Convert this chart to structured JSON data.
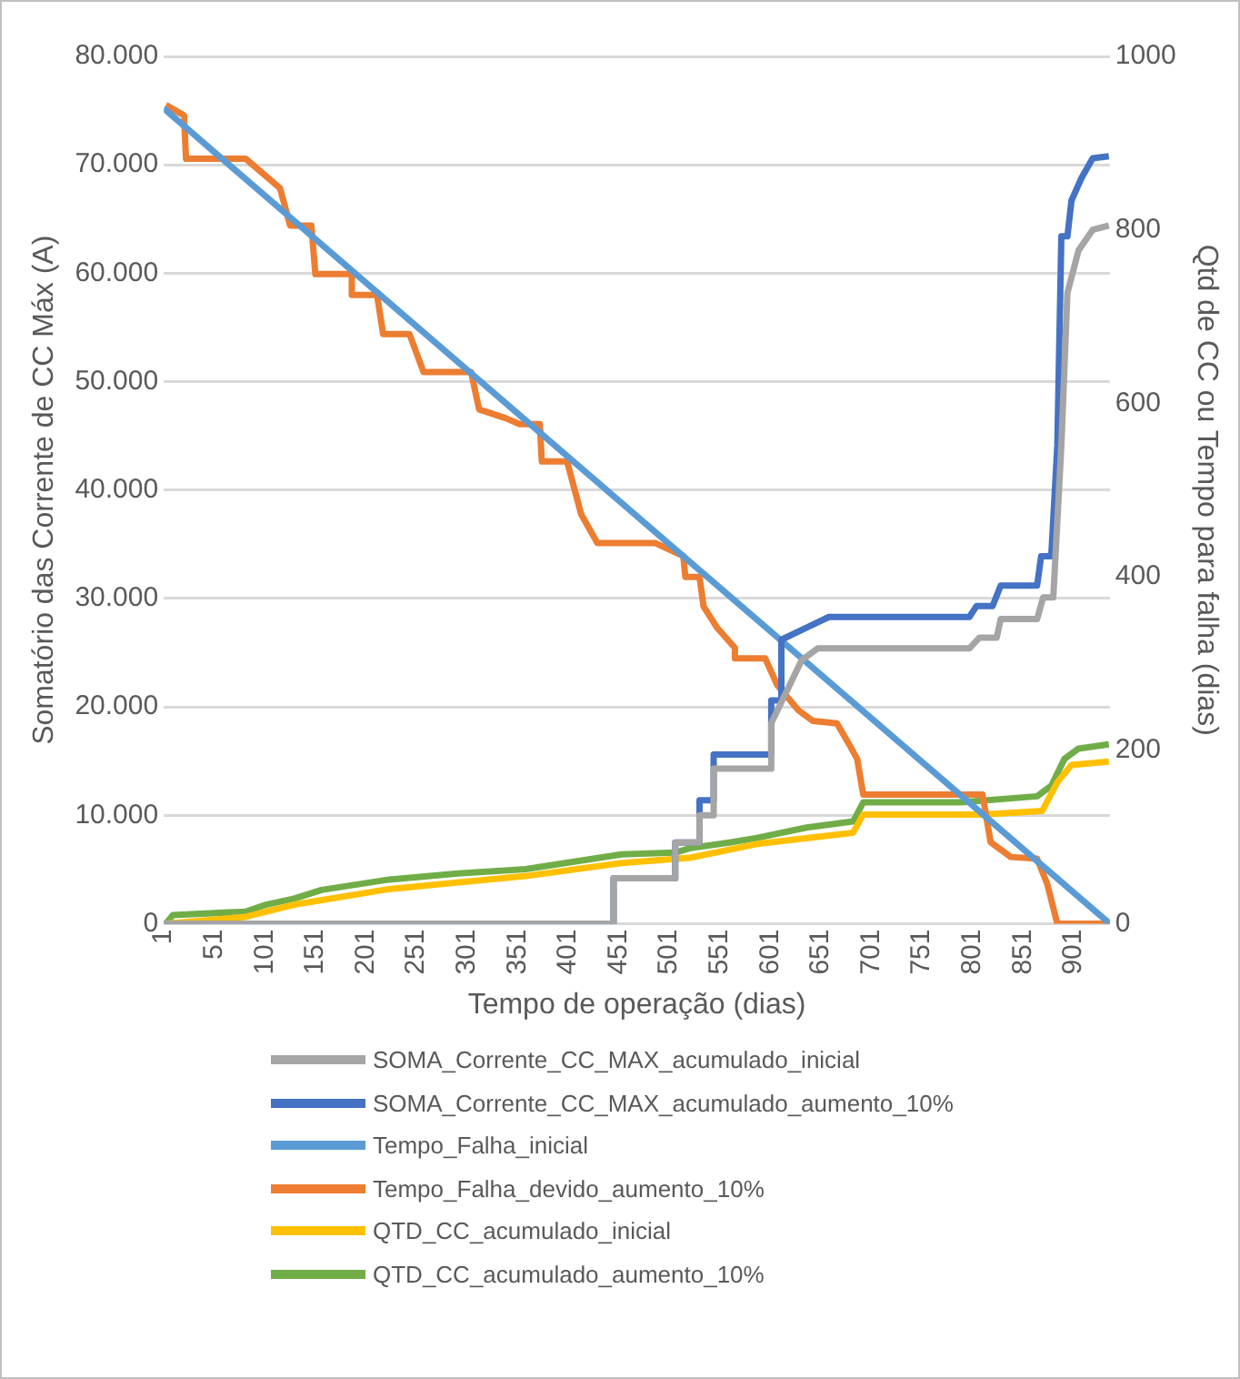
{
  "chart_data": {
    "type": "line",
    "xlabel": "Tempo de operação (dias)",
    "ylabel": "Somatório das Corrente de CC Máx (A)",
    "y2label": "Qtd de CC ou Tempo para falha (dias)",
    "xlim": [
      1,
      937
    ],
    "xticks": [
      1,
      51,
      101,
      151,
      201,
      251,
      301,
      351,
      401,
      451,
      501,
      551,
      601,
      651,
      701,
      751,
      801,
      851,
      901
    ],
    "ylim": [
      0,
      80000
    ],
    "yticks": [
      {
        "value": 0,
        "label": "0"
      },
      {
        "value": 10000,
        "label": "10.000"
      },
      {
        "value": 20000,
        "label": "20.000"
      },
      {
        "value": 30000,
        "label": "30.000"
      },
      {
        "value": 40000,
        "label": "40.000"
      },
      {
        "value": 50000,
        "label": "50.000"
      },
      {
        "value": 60000,
        "label": "60.000"
      },
      {
        "value": 70000,
        "label": "70.000"
      },
      {
        "value": 80000,
        "label": "80.000"
      }
    ],
    "y2lim": [
      0,
      1000
    ],
    "y2ticks": [
      0,
      200,
      400,
      600,
      800,
      1000
    ],
    "grid": "y",
    "legend": "bottom",
    "marker": "none",
    "line_style": "solid",
    "series": [
      {
        "name": "SOMA_Corrente_CC_MAX_acumulado_inicial",
        "color": "#a5a5a5",
        "x": [
          1,
          446,
          446,
          507,
          507,
          531,
          531,
          545,
          545,
          602,
          602,
          632,
          632,
          648,
          648,
          798,
          808,
          825,
          829,
          865,
          871,
          881,
          889,
          895,
          906,
          920,
          936
        ],
        "values": [
          0,
          0,
          4200,
          4200,
          7500,
          7500,
          10000,
          10000,
          14300,
          14300,
          18500,
          24300,
          24300,
          25400,
          25400,
          25400,
          26400,
          26400,
          28100,
          28100,
          30100,
          30100,
          44100,
          58200,
          62100,
          64000,
          64400
        ]
      },
      {
        "name": "SOMA_Corrente_CC_MAX_acumulado_aumento_10%",
        "color": "#4472c4",
        "x": [
          1,
          446,
          446,
          507,
          507,
          531,
          531,
          545,
          545,
          602,
          602,
          612,
          612,
          639,
          659,
          798,
          805,
          821,
          829,
          865,
          869,
          879,
          885,
          889,
          895,
          899,
          909,
          920,
          936
        ],
        "values": [
          0,
          0,
          4200,
          4200,
          7500,
          7500,
          11400,
          11400,
          15600,
          15600,
          20600,
          20600,
          26200,
          27400,
          28300,
          28300,
          29300,
          29300,
          31200,
          31200,
          33900,
          33900,
          44100,
          63400,
          63400,
          66700,
          68800,
          70600,
          70800
        ]
      },
      {
        "name": "Tempo_Falha_inicial",
        "color": "#5b9bd5",
        "axis": "y2",
        "x": [
          1,
          937
        ],
        "values": [
          940,
          0
        ]
      },
      {
        "name": "Tempo_Falha_devido_aumento_10%",
        "color": "#ed7d31",
        "axis": "y2",
        "x": [
          3,
          21,
          23,
          82,
          116,
          126,
          147,
          151,
          187,
          187,
          212,
          218,
          244,
          258,
          305,
          313,
          339,
          353,
          373,
          375,
          400,
          414,
          430,
          487,
          515,
          517,
          531,
          535,
          548,
          566,
          566,
          596,
          608,
          629,
          643,
          667,
          679,
          687,
          693,
          811,
          819,
          839,
          865,
          875,
          885,
          937
        ],
        "values": [
          944,
          932,
          882,
          882,
          848,
          805,
          805,
          749,
          749,
          725,
          725,
          680,
          680,
          636,
          636,
          593,
          583,
          576,
          576,
          533,
          533,
          472,
          439,
          439,
          424,
          400,
          400,
          366,
          342,
          318,
          306,
          306,
          275,
          246,
          234,
          231,
          207,
          190,
          149,
          149,
          94,
          77,
          75,
          46,
          0,
          0
        ]
      },
      {
        "name": "QTD_CC_acumulado_inicial",
        "color": "#ffc000",
        "axis": "y2",
        "x": [
          3,
          82,
          130,
          224,
          359,
          454,
          521,
          588,
          683,
          693,
          811,
          870,
          885,
          899,
          936
        ],
        "values": [
          0,
          8,
          22,
          40,
          55,
          70,
          76,
          92,
          105,
          126,
          126,
          130,
          163,
          183,
          187
        ]
      },
      {
        "name": "QTD_CC_acumulado_aumento_10%",
        "color": "#70ad47",
        "axis": "y2",
        "x": [
          3,
          10,
          82,
          102,
          130,
          157,
          224,
          292,
          359,
          426,
          454,
          507,
          521,
          562,
          588,
          637,
          683,
          693,
          790,
          865,
          879,
          892,
          906,
          936
        ],
        "values": [
          0,
          10,
          14,
          22,
          29,
          39,
          51,
          58,
          63,
          75,
          80,
          82,
          87,
          94,
          99,
          111,
          118,
          140,
          140,
          147,
          159,
          190,
          202,
          207
        ]
      }
    ]
  }
}
